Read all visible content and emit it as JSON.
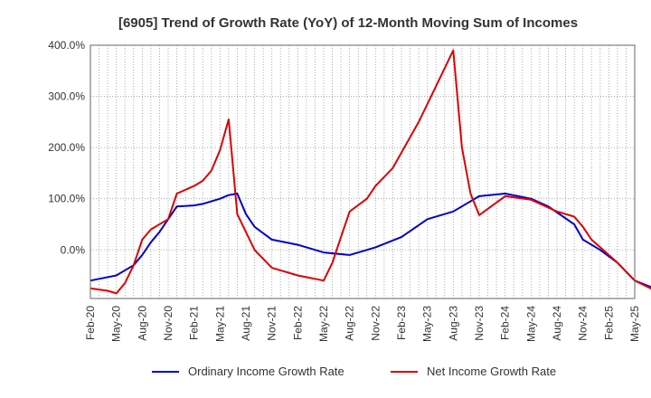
{
  "chart_data": {
    "type": "line",
    "title": "[6905]  Trend of Growth Rate (YoY) of 12-Month Moving Sum of Incomes",
    "xlabel": "",
    "ylabel": "",
    "x_tick_labels": [
      "Feb-20",
      "May-20",
      "Aug-20",
      "Nov-20",
      "Feb-21",
      "May-21",
      "Aug-21",
      "Nov-21",
      "Feb-22",
      "May-22",
      "Aug-22",
      "Nov-22",
      "Feb-23",
      "May-23",
      "Aug-23",
      "Nov-23",
      "Feb-24",
      "May-24",
      "Aug-24",
      "Nov-24",
      "Feb-25",
      "May-25"
    ],
    "y_tick_labels": [
      "400.0%",
      "300.0%",
      "200.0%",
      "100.0%",
      "0.0%"
    ],
    "y_ticks": [
      400,
      300,
      200,
      100,
      0
    ],
    "ylim": [
      -95,
      400
    ],
    "x_start": "Feb-20",
    "grid": true,
    "legend_position": "bottom",
    "series": [
      {
        "name": "Ordinary Income Growth Rate",
        "color": "#0000cc",
        "values": [
          [
            0,
            -60
          ],
          [
            3,
            -50
          ],
          [
            5,
            -30
          ],
          [
            6,
            -10
          ],
          [
            7,
            15
          ],
          [
            8,
            35
          ],
          [
            9,
            60
          ],
          [
            10,
            85
          ],
          [
            12,
            87
          ],
          [
            13,
            90
          ],
          [
            15,
            100
          ],
          [
            16,
            107
          ],
          [
            17,
            110
          ],
          [
            18,
            70
          ],
          [
            19,
            45
          ],
          [
            21,
            20
          ],
          [
            24,
            10
          ],
          [
            27,
            -5
          ],
          [
            30,
            -10
          ],
          [
            33,
            5
          ],
          [
            36,
            25
          ],
          [
            39,
            60
          ],
          [
            42,
            75
          ],
          [
            45,
            105
          ],
          [
            48,
            110
          ],
          [
            51,
            100
          ],
          [
            53,
            85
          ],
          [
            56,
            50
          ],
          [
            57,
            20
          ],
          [
            59,
            0
          ],
          [
            61,
            -25
          ],
          [
            63,
            -60
          ],
          [
            66,
            -80
          ]
        ]
      },
      {
        "name": "Net Income Growth Rate",
        "color": "#dd0000",
        "values": [
          [
            0,
            -75
          ],
          [
            2,
            -80
          ],
          [
            3,
            -85
          ],
          [
            4,
            -65
          ],
          [
            5,
            -30
          ],
          [
            6,
            20
          ],
          [
            7,
            40
          ],
          [
            9,
            60
          ],
          [
            10,
            110
          ],
          [
            12,
            125
          ],
          [
            13,
            135
          ],
          [
            14,
            155
          ],
          [
            15,
            195
          ],
          [
            16,
            255
          ],
          [
            17,
            70
          ],
          [
            19,
            0
          ],
          [
            21,
            -35
          ],
          [
            24,
            -50
          ],
          [
            27,
            -60
          ],
          [
            28,
            -25
          ],
          [
            29,
            25
          ],
          [
            30,
            75
          ],
          [
            32,
            100
          ],
          [
            33,
            125
          ],
          [
            35,
            160
          ],
          [
            38,
            250
          ],
          [
            40,
            320
          ],
          [
            42,
            390
          ],
          [
            43,
            200
          ],
          [
            44,
            110
          ],
          [
            45,
            68
          ],
          [
            48,
            105
          ],
          [
            51,
            98
          ],
          [
            54,
            75
          ],
          [
            56,
            65
          ],
          [
            57,
            45
          ],
          [
            58,
            20
          ],
          [
            59,
            5
          ],
          [
            61,
            -25
          ],
          [
            63,
            -60
          ],
          [
            66,
            -85
          ]
        ]
      }
    ]
  }
}
